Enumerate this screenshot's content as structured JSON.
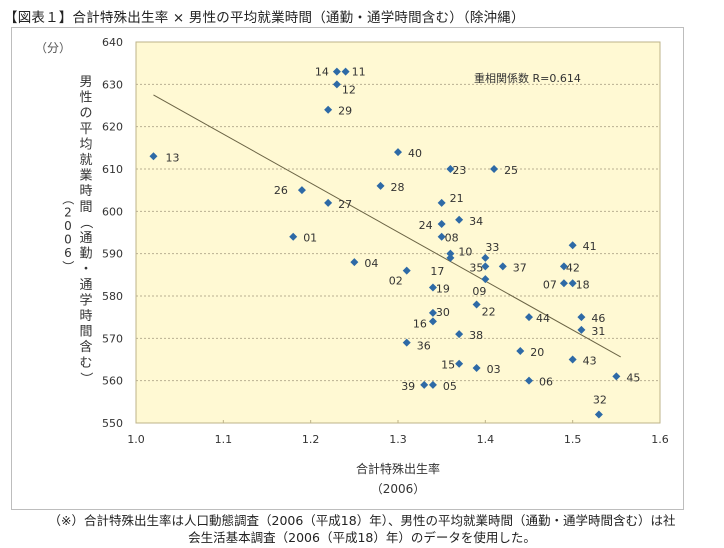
{
  "title": "【図表１】合計特殊出生率 × 男性の平均就業時間（通勤・通学時間含む）（除沖縄）",
  "caption": {
    "line1": "（※）合計特殊出生率は人口動態調査（2006（平成18）年）、男性の平均就業時間（通勤・通学時間含む）は社",
    "line2": "会生活基本調査（2006（平成18）年）のデータを使用した。"
  },
  "chart_data": {
    "type": "scatter",
    "title": "合計特殊出生率 × 男性の平均就業時間（通勤・通学時間含む）（除沖縄）",
    "xlabel": "合計特殊出生率",
    "xlabel_sub": "（2006）",
    "ylabel": "男性の平均就業時間（通勤・通学時間含む）",
    "ylabel_sub": "（2006）",
    "yunit": "（分）",
    "xlim": [
      1.0,
      1.6
    ],
    "ylim": [
      550,
      640
    ],
    "xticks": [
      "1.0",
      "1.1",
      "1.2",
      "1.3",
      "1.4",
      "1.5",
      "1.6"
    ],
    "yticks": [
      "550",
      "560",
      "570",
      "580",
      "590",
      "600",
      "610",
      "620",
      "630",
      "640"
    ],
    "grid": "horizontal dashed",
    "annotation": "重相関係数 R=0.614",
    "trendline": {
      "x1": 1.02,
      "y1": 627.5,
      "x2": 1.555,
      "y2": 565.6
    },
    "points": [
      {
        "label": "01",
        "x": 1.18,
        "y": 594
      },
      {
        "label": "02",
        "x": 1.31,
        "y": 586
      },
      {
        "label": "03",
        "x": 1.39,
        "y": 563
      },
      {
        "label": "04",
        "x": 1.25,
        "y": 588
      },
      {
        "label": "05",
        "x": 1.34,
        "y": 559
      },
      {
        "label": "06",
        "x": 1.45,
        "y": 560
      },
      {
        "label": "07",
        "x": 1.49,
        "y": 583
      },
      {
        "label": "08",
        "x": 1.35,
        "y": 594
      },
      {
        "label": "09",
        "x": 1.4,
        "y": 584
      },
      {
        "label": "10",
        "x": 1.36,
        "y": 590
      },
      {
        "label": "11",
        "x": 1.24,
        "y": 633
      },
      {
        "label": "12",
        "x": 1.23,
        "y": 630
      },
      {
        "label": "13",
        "x": 1.02,
        "y": 613
      },
      {
        "label": "14",
        "x": 1.23,
        "y": 633
      },
      {
        "label": "15",
        "x": 1.37,
        "y": 564
      },
      {
        "label": "16",
        "x": 1.34,
        "y": 574
      },
      {
        "label": "17",
        "x": 1.36,
        "y": 589
      },
      {
        "label": "18",
        "x": 1.5,
        "y": 583
      },
      {
        "label": "19",
        "x": 1.34,
        "y": 582
      },
      {
        "label": "20",
        "x": 1.44,
        "y": 567
      },
      {
        "label": "21",
        "x": 1.35,
        "y": 602
      },
      {
        "label": "22",
        "x": 1.39,
        "y": 578
      },
      {
        "label": "23",
        "x": 1.36,
        "y": 610
      },
      {
        "label": "24",
        "x": 1.35,
        "y": 597
      },
      {
        "label": "25",
        "x": 1.41,
        "y": 610
      },
      {
        "label": "26",
        "x": 1.19,
        "y": 605
      },
      {
        "label": "27",
        "x": 1.22,
        "y": 602
      },
      {
        "label": "28",
        "x": 1.28,
        "y": 606
      },
      {
        "label": "29",
        "x": 1.22,
        "y": 624
      },
      {
        "label": "30",
        "x": 1.34,
        "y": 576
      },
      {
        "label": "31",
        "x": 1.51,
        "y": 572
      },
      {
        "label": "32",
        "x": 1.53,
        "y": 552
      },
      {
        "label": "33",
        "x": 1.4,
        "y": 589
      },
      {
        "label": "34",
        "x": 1.37,
        "y": 598
      },
      {
        "label": "35",
        "x": 1.4,
        "y": 587
      },
      {
        "label": "36",
        "x": 1.31,
        "y": 569
      },
      {
        "label": "37",
        "x": 1.42,
        "y": 587
      },
      {
        "label": "38",
        "x": 1.37,
        "y": 571
      },
      {
        "label": "39",
        "x": 1.33,
        "y": 559
      },
      {
        "label": "40",
        "x": 1.3,
        "y": 614
      },
      {
        "label": "41",
        "x": 1.5,
        "y": 592
      },
      {
        "label": "42",
        "x": 1.49,
        "y": 587
      },
      {
        "label": "43",
        "x": 1.5,
        "y": 565
      },
      {
        "label": "44",
        "x": 1.45,
        "y": 575
      },
      {
        "label": "45",
        "x": 1.55,
        "y": 561
      },
      {
        "label": "46",
        "x": 1.51,
        "y": 575
      }
    ]
  },
  "label_offsets": {
    "14": [
      -22,
      4
    ],
    "11": [
      6,
      4
    ],
    "12": [
      5,
      9
    ],
    "29": [
      10,
      5
    ],
    "13": [
      12,
      5
    ],
    "40": [
      10,
      5
    ],
    "23": [
      2,
      5
    ],
    "25": [
      10,
      5
    ],
    "26": [
      -28,
      4
    ],
    "27": [
      10,
      5
    ],
    "28": [
      10,
      5
    ],
    "21": [
      8,
      -1
    ],
    "24": [
      -23,
      5
    ],
    "34": [
      10,
      5
    ],
    "08": [
      3,
      5
    ],
    "10": [
      8,
      2
    ],
    "17": [
      -20,
      17
    ],
    "01": [
      10,
      5
    ],
    "04": [
      10,
      5
    ],
    "02": [
      -18,
      14
    ],
    "33": [
      0,
      -7
    ],
    "35": [
      -16,
      5
    ],
    "37": [
      10,
      5
    ],
    "09": [
      -13,
      16
    ],
    "19": [
      3,
      5
    ],
    "41": [
      10,
      5
    ],
    "42": [
      2,
      5
    ],
    "07": [
      -21,
      5
    ],
    "18": [
      3,
      5
    ],
    "22": [
      5,
      11
    ],
    "30": [
      3,
      3
    ],
    "16": [
      -20,
      6
    ],
    "38": [
      10,
      5
    ],
    "36": [
      10,
      7
    ],
    "44": [
      7,
      5
    ],
    "46": [
      10,
      5
    ],
    "31": [
      10,
      5
    ],
    "20": [
      10,
      5
    ],
    "43": [
      10,
      5
    ],
    "15": [
      -18,
      5
    ],
    "03": [
      10,
      5
    ],
    "06": [
      10,
      5
    ],
    "45": [
      10,
      5
    ],
    "39": [
      -23,
      5
    ],
    "05": [
      10,
      5
    ],
    "32": [
      -6,
      -11
    ]
  }
}
